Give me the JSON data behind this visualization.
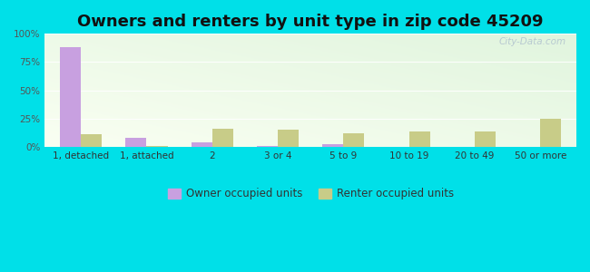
{
  "title": "Owners and renters by unit type in zip code 45209",
  "categories": [
    "1, detached",
    "1, attached",
    "2",
    "3 or 4",
    "5 to 9",
    "10 to 19",
    "20 to 49",
    "50 or more"
  ],
  "owner_values": [
    88,
    8,
    4,
    0.5,
    2,
    0,
    0,
    0
  ],
  "renter_values": [
    11,
    1,
    16,
    15,
    12,
    14,
    14,
    25
  ],
  "owner_color": "#c8a0e0",
  "renter_color": "#c8cc88",
  "outer_bg": "#00e0e8",
  "title_fontsize": 13,
  "tick_fontsize": 7.5,
  "legend_fontsize": 8.5,
  "ylim": [
    0,
    100
  ],
  "yticks": [
    0,
    25,
    50,
    75,
    100
  ],
  "ytick_labels": [
    "0%",
    "25%",
    "50%",
    "75%",
    "100%"
  ],
  "watermark": "City-Data.com",
  "bar_width": 0.32,
  "grid_color": "#ccddcc",
  "bg_color_top": "#e8f5e0",
  "bg_color_bottom": "#f8fff4"
}
